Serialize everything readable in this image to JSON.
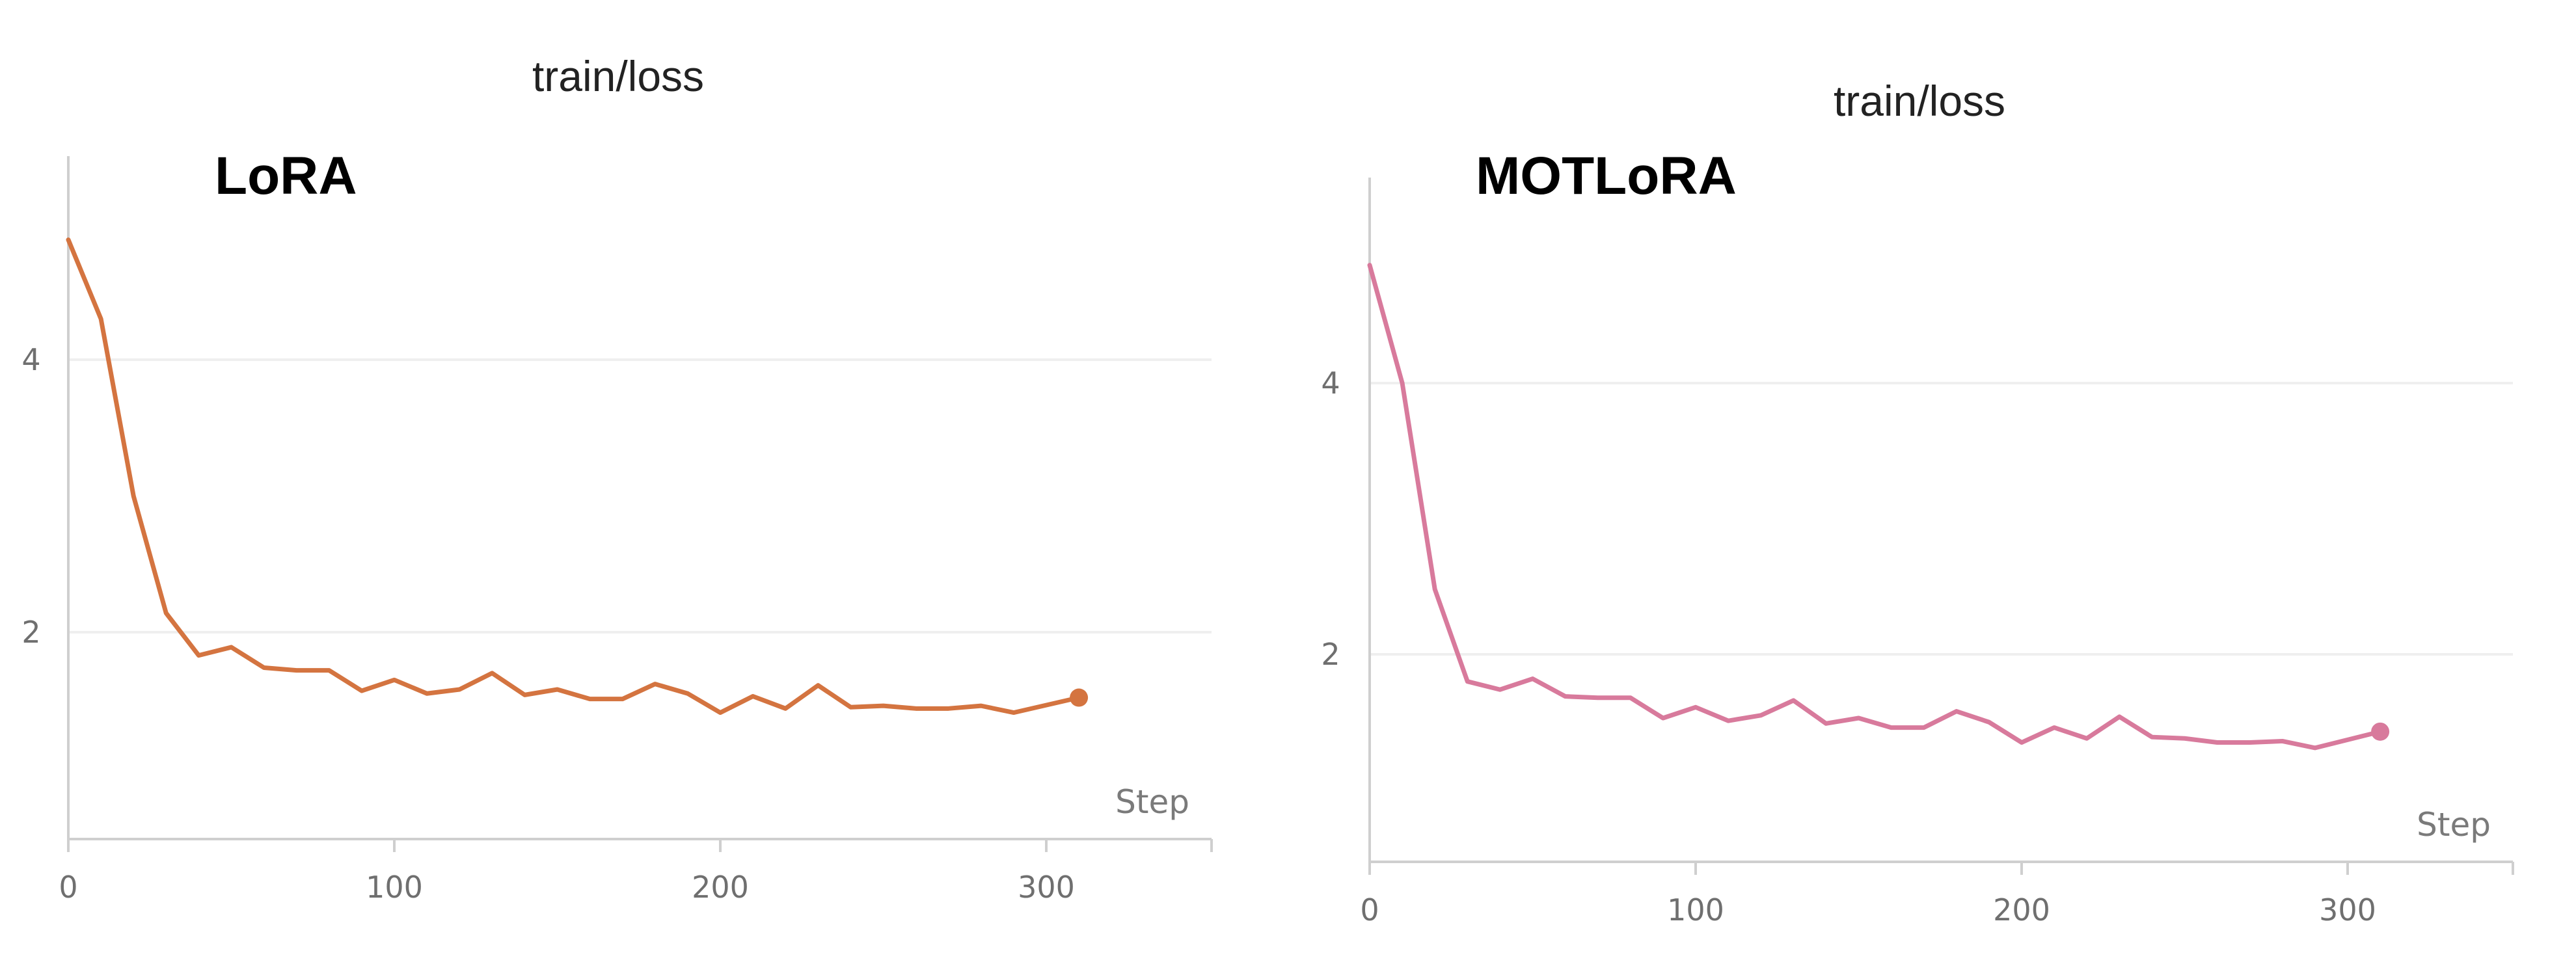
{
  "chart_data": [
    {
      "type": "line",
      "title": "train/loss",
      "annotation": "LoRA",
      "xlabel": "Step",
      "ylabel": "",
      "xlim": [
        0,
        350
      ],
      "ylim": [
        0.75,
        5.2
      ],
      "xticks": [
        0,
        100,
        200,
        300
      ],
      "yticks": [
        2,
        4
      ],
      "grid": true,
      "color": "#d47440",
      "series": [
        {
          "x": [
            0,
            10,
            20,
            30,
            40,
            50,
            60,
            70,
            80,
            90,
            100,
            110,
            120,
            130,
            140,
            150,
            160,
            170,
            180,
            190,
            200,
            210,
            220,
            230,
            240,
            250,
            260,
            270,
            280,
            290,
            310
          ],
          "y": [
            4.88,
            4.3,
            3.0,
            2.14,
            1.83,
            1.89,
            1.74,
            1.72,
            1.72,
            1.57,
            1.65,
            1.55,
            1.58,
            1.7,
            1.54,
            1.58,
            1.51,
            1.51,
            1.62,
            1.55,
            1.41,
            1.53,
            1.44,
            1.61,
            1.45,
            1.46,
            1.44,
            1.44,
            1.46,
            1.41,
            1.52
          ]
        }
      ]
    },
    {
      "type": "line",
      "title": "train/loss",
      "annotation": "MOTLoRA",
      "xlabel": "Step",
      "ylabel": "",
      "xlim": [
        0,
        350
      ],
      "ylim": [
        0.75,
        5.2
      ],
      "xticks": [
        0,
        100,
        200,
        300
      ],
      "yticks": [
        2,
        4
      ],
      "grid": true,
      "color": "#d87a9c",
      "series": [
        {
          "x": [
            0,
            10,
            20,
            30,
            40,
            50,
            60,
            70,
            80,
            90,
            100,
            110,
            120,
            130,
            140,
            150,
            160,
            170,
            180,
            190,
            200,
            210,
            220,
            230,
            240,
            250,
            260,
            270,
            280,
            290,
            310
          ],
          "y": [
            4.87,
            4.0,
            2.48,
            1.8,
            1.74,
            1.82,
            1.69,
            1.68,
            1.68,
            1.53,
            1.61,
            1.51,
            1.55,
            1.66,
            1.49,
            1.53,
            1.46,
            1.46,
            1.58,
            1.5,
            1.35,
            1.46,
            1.38,
            1.54,
            1.39,
            1.38,
            1.35,
            1.35,
            1.36,
            1.31,
            1.43
          ]
        }
      ]
    }
  ]
}
